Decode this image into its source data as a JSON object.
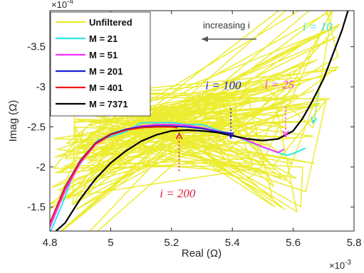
{
  "chart_data": {
    "type": "line",
    "title": "",
    "xlabel": "Real (Ω)",
    "ylabel": "Imag (Ω)",
    "x_multiplier": "×10",
    "x_multiplier_exp": "-3",
    "y_multiplier": "×10",
    "y_multiplier_exp": "-4",
    "xlim": [
      4.8,
      5.8
    ],
    "ylim": [
      -1.2,
      -3.95
    ],
    "y_reversed": true,
    "xticks": [
      4.8,
      5.0,
      5.2,
      5.4,
      5.6,
      5.8
    ],
    "xtick_labels": [
      "4.8",
      "5",
      "5.2",
      "5.4",
      "5.6",
      "5.8"
    ],
    "yticks": [
      -1.5,
      -2.0,
      -2.5,
      -3.0,
      -3.5
    ],
    "ytick_labels": [
      "-1.5",
      "-2",
      "-2.5",
      "-3",
      "-3.5"
    ],
    "grid": false,
    "legend_position": "top-left",
    "series": [
      {
        "name": "Unfiltered",
        "color": "#ecec30",
        "width": 1.5,
        "noisy": true,
        "x": [
          4.8,
          4.85,
          4.9,
          4.95,
          5.0,
          5.05,
          5.1,
          5.15,
          5.2,
          5.25,
          5.3,
          5.35,
          5.4,
          5.45,
          5.5,
          5.55,
          5.58,
          5.6,
          5.62,
          5.65,
          5.68,
          5.7,
          5.72,
          5.75,
          5.78
        ],
        "y": [
          -1.45,
          -1.9,
          -2.2,
          -2.42,
          -2.5,
          -2.55,
          -2.57,
          -2.58,
          -2.57,
          -2.55,
          -2.52,
          -2.48,
          -2.42,
          -2.35,
          -2.28,
          -2.22,
          -2.2,
          -2.25,
          -2.35,
          -2.6,
          -2.95,
          -3.3,
          -3.6,
          -3.85,
          -3.95
        ]
      },
      {
        "name": "M = 21",
        "color": "#2ee6f0",
        "width": 2,
        "x": [
          4.8,
          4.84,
          4.88,
          4.92,
          4.96,
          5.0,
          5.05,
          5.1,
          5.15,
          5.2,
          5.25,
          5.3,
          5.35,
          5.4,
          5.45,
          5.5,
          5.55,
          5.58,
          5.6,
          5.62,
          5.64
        ],
        "y": [
          -1.2,
          -1.55,
          -1.95,
          -2.15,
          -2.3,
          -2.4,
          -2.48,
          -2.52,
          -2.55,
          -2.55,
          -2.52,
          -2.5,
          -2.45,
          -2.38,
          -2.3,
          -2.22,
          -2.15,
          -2.12,
          -2.15,
          -2.2,
          -2.22
        ]
      },
      {
        "name": "M = 51",
        "color": "#ff30ff",
        "width": 2,
        "x": [
          4.8,
          4.85,
          4.9,
          4.95,
          5.0,
          5.05,
          5.1,
          5.15,
          5.2,
          5.25,
          5.3,
          5.35,
          5.4,
          5.45,
          5.5,
          5.55,
          5.57
        ],
        "y": [
          -1.25,
          -1.7,
          -2.05,
          -2.28,
          -2.4,
          -2.47,
          -2.51,
          -2.53,
          -2.53,
          -2.52,
          -2.49,
          -2.45,
          -2.4,
          -2.33,
          -2.25,
          -2.18,
          -2.22
        ]
      },
      {
        "name": "M = 201",
        "color": "#1a20d8",
        "width": 2,
        "x": [
          4.8,
          4.85,
          4.9,
          4.95,
          5.0,
          5.05,
          5.1,
          5.15,
          5.2,
          5.25,
          5.3,
          5.35,
          5.4
        ],
        "y": [
          -1.3,
          -1.75,
          -2.08,
          -2.3,
          -2.41,
          -2.47,
          -2.5,
          -2.51,
          -2.51,
          -2.5,
          -2.48,
          -2.44,
          -2.42
        ]
      },
      {
        "name": "M = 401",
        "color": "#f01818",
        "width": 2,
        "x": [
          4.8,
          4.85,
          4.9,
          4.95,
          5.0,
          5.05,
          5.1,
          5.15,
          5.2,
          5.22
        ],
        "y": [
          -1.3,
          -1.74,
          -2.07,
          -2.29,
          -2.4,
          -2.46,
          -2.49,
          -2.5,
          -2.5,
          -2.49
        ]
      },
      {
        "name": "M = 7371",
        "color": "#000000",
        "width": 2.2,
        "x": [
          4.82,
          4.85,
          4.9,
          4.95,
          5.0,
          5.05,
          5.1,
          5.15,
          5.2,
          5.25,
          5.3,
          5.35,
          5.4,
          5.45,
          5.5,
          5.55,
          5.6,
          5.63,
          5.66,
          5.7,
          5.73,
          5.76,
          5.78
        ],
        "y": [
          -1.2,
          -1.3,
          -1.6,
          -1.85,
          -2.05,
          -2.2,
          -2.32,
          -2.4,
          -2.45,
          -2.46,
          -2.45,
          -2.43,
          -2.39,
          -2.35,
          -2.33,
          -2.35,
          -2.45,
          -2.6,
          -2.8,
          -3.1,
          -3.4,
          -3.7,
          -3.95
        ]
      }
    ],
    "annotations": [
      {
        "label": "i = 10",
        "color": "#2ee6f0",
        "text_at": [
          5.68,
          -3.7
        ],
        "arrow_from": [
          5.685,
          -2.93
        ],
        "arrow_to": [
          5.665,
          -2.55
        ]
      },
      {
        "label": "i = 25",
        "color": "#ff30ff",
        "text_at": [
          5.555,
          -2.98
        ],
        "arrow_from": [
          5.575,
          -2.75
        ],
        "arrow_to": [
          5.575,
          -2.38
        ]
      },
      {
        "label": "i = 100",
        "color": "#1a20d8",
        "text_at": [
          5.37,
          -2.97
        ],
        "arrow_from": [
          5.395,
          -2.73
        ],
        "arrow_to": [
          5.395,
          -2.36
        ]
      },
      {
        "label": "i = 200",
        "color": "#e01c3c",
        "text_at": [
          5.22,
          -1.62
        ],
        "arrow_from": [
          5.225,
          -1.95
        ],
        "arrow_to": [
          5.225,
          -2.42
        ]
      }
    ],
    "direction_note": "increasing i"
  }
}
